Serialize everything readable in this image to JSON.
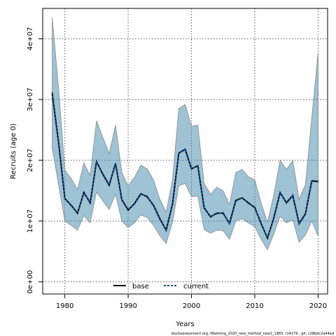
{
  "chart_data": {
    "type": "line",
    "xlabel": "Years",
    "ylabel": "Recruits (age 0)",
    "xlim": [
      1976.5,
      2021.5
    ],
    "ylim": [
      -2000000,
      45000000
    ],
    "x_ticks": [
      1980,
      1990,
      2000,
      2010,
      2020
    ],
    "x_tick_labels": [
      "1980",
      "1990",
      "2000",
      "2010",
      "2020"
    ],
    "y_ticks": [
      0,
      10000000,
      20000000,
      30000000,
      40000000
    ],
    "y_tick_labels": [
      "0e+00",
      "1e+07",
      "2e+07",
      "3e+07",
      "4e+07"
    ],
    "grid": true,
    "legend": {
      "position": "bottom",
      "entries": [
        "base",
        "current"
      ]
    },
    "footnote": "stockassessment.org, NSehting_2020_new_method_new1_1983, r14179 , git: c28bdc2a44ad",
    "colors": {
      "band": "#3c87aa",
      "band_edge": "#8a8a8a",
      "base": "#000000",
      "current": "#1e4f90"
    },
    "x": [
      1978,
      1979,
      1980,
      1981,
      1982,
      1983,
      1984,
      1985,
      1986,
      1987,
      1988,
      1989,
      1990,
      1991,
      1992,
      1993,
      1994,
      1995,
      1996,
      1997,
      1998,
      1999,
      2000,
      2001,
      2002,
      2003,
      2004,
      2005,
      2006,
      2007,
      2008,
      2009,
      2010,
      2011,
      2012,
      2013,
      2014,
      2015,
      2016,
      2017,
      2018,
      2019,
      2020
    ],
    "series": [
      {
        "name": "base",
        "style": "solid",
        "values": [
          31000000,
          23000000,
          13700000,
          12600000,
          11300000,
          14700000,
          13000000,
          19800000,
          17700000,
          15900000,
          19500000,
          13500000,
          11800000,
          12900000,
          14500000,
          14000000,
          12600000,
          10400000,
          8500000,
          12800000,
          21200000,
          21800000,
          18600000,
          19100000,
          12200000,
          10700000,
          11300000,
          11300000,
          9600000,
          13400000,
          13800000,
          13000000,
          12200000,
          9600000,
          7200000,
          10500000,
          14700000,
          13000000,
          14200000,
          9600000,
          11200000,
          16600000,
          16500000
        ],
        "lower": [
          22000000,
          16000000,
          10000000,
          9300000,
          8500000,
          10900000,
          9700000,
          14800000,
          13300000,
          11900000,
          14400000,
          10000000,
          8900000,
          9700000,
          11000000,
          10600000,
          9300000,
          7600000,
          6300000,
          9800000,
          15800000,
          16200000,
          14000000,
          14100000,
          8600000,
          8000000,
          8500000,
          8400000,
          7000000,
          10000000,
          10400000,
          9700000,
          9100000,
          7000000,
          5300000,
          7900000,
          10800000,
          9700000,
          10200000,
          6500000,
          7700000,
          10000000,
          7500000
        ],
        "upper": [
          43500000,
          32000000,
          18400000,
          17000000,
          15200000,
          19600000,
          17500000,
          26500000,
          23800000,
          21100000,
          25800000,
          18000000,
          15800000,
          17200000,
          19200000,
          18600000,
          16800000,
          13600000,
          11500000,
          16800000,
          28500000,
          29200000,
          25600000,
          25800000,
          16200000,
          14400000,
          15600000,
          15000000,
          12700000,
          18000000,
          18500000,
          17300000,
          16800000,
          13000000,
          9800000,
          14300000,
          20000000,
          18500000,
          20000000,
          13600000,
          16000000,
          27000000,
          37700000
        ]
      },
      {
        "name": "current",
        "style": "dashed",
        "values": [
          31200000,
          23100000,
          13800000,
          12500000,
          11400000,
          14600000,
          13100000,
          19700000,
          17800000,
          16000000,
          19400000,
          13600000,
          11900000,
          12800000,
          14400000,
          14100000,
          12500000,
          10300000,
          8600000,
          12700000,
          21100000,
          21900000,
          18700000,
          19000000,
          12100000,
          10800000,
          11200000,
          11400000,
          9500000,
          13300000,
          13900000,
          12900000,
          12300000,
          9500000,
          7300000,
          10400000,
          14600000,
          13100000,
          14300000,
          9500000,
          11100000,
          16700000,
          16600000
        ]
      }
    ]
  }
}
